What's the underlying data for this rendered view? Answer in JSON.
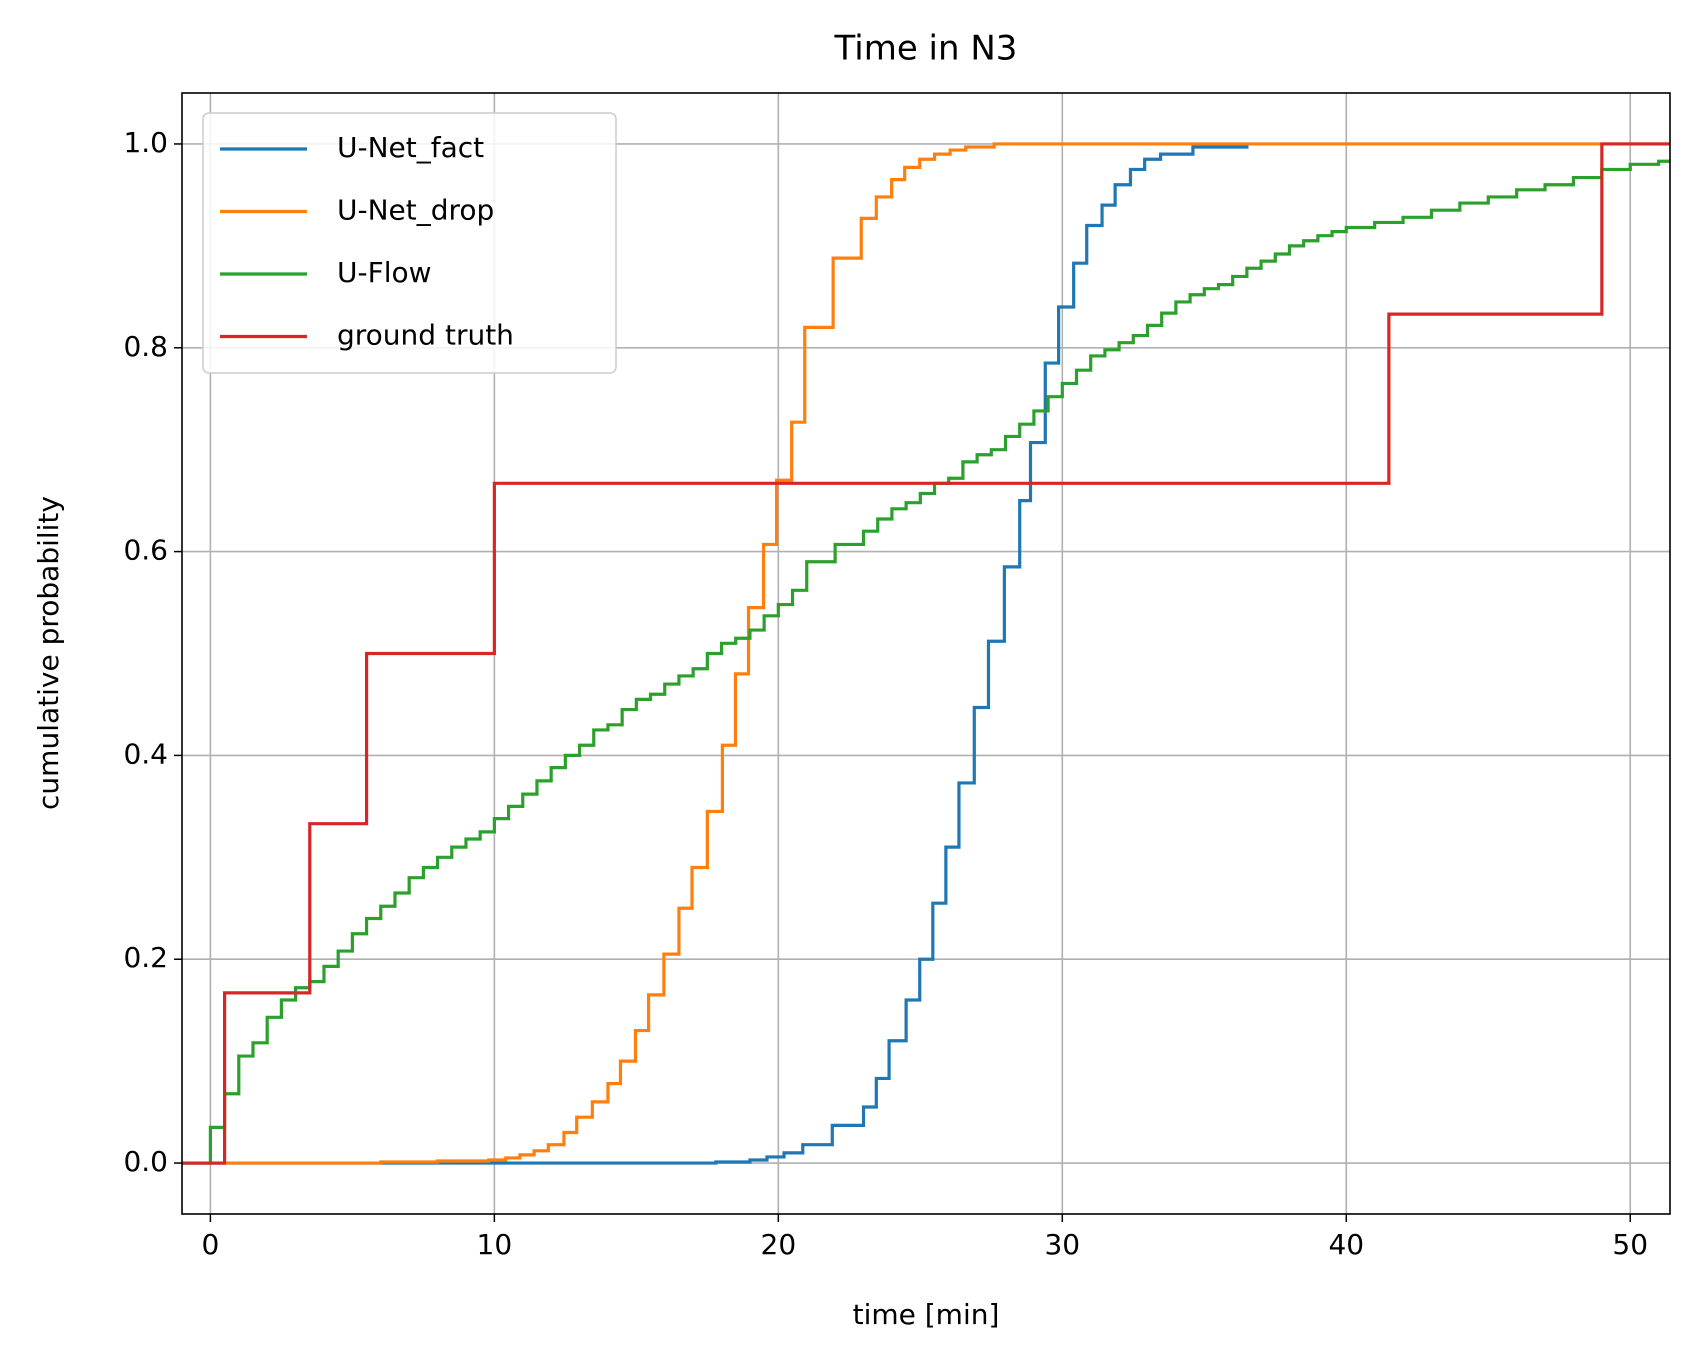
{
  "chart_data": {
    "type": "step",
    "title": "Time in N3",
    "x_label": "time [min]",
    "y_label": "cumulative probability",
    "xlim": [
      -1,
      51.4
    ],
    "ylim": [
      -0.05,
      1.05
    ],
    "xticks": [
      0,
      10,
      20,
      30,
      40,
      50
    ],
    "yticks": [
      {
        "value": 0,
        "label": "0.0"
      },
      0.2,
      0.4,
      0.6,
      0.8,
      {
        "value": 1,
        "label": "1.0"
      }
    ],
    "grid": true,
    "legend": "upper left",
    "series": [
      {
        "name": "U-Net_fact",
        "color": "#1f77b4",
        "x": [
          -1,
          17.8,
          19,
          19.6,
          20.2,
          20.86,
          21.9,
          23.0,
          23.45,
          23.9,
          24.5,
          24.98,
          25.44,
          25.9,
          26.36,
          26.9,
          27.4,
          27.96,
          28.5,
          28.88,
          29.4,
          29.87,
          30.4,
          30.86,
          31.4,
          31.86,
          32.4,
          32.9,
          33.46,
          34.6,
          36.5
        ],
        "values": [
          0,
          0.001,
          0.003,
          0.006,
          0.01,
          0.018,
          0.037,
          0.055,
          0.083,
          0.12,
          0.16,
          0.2,
          0.255,
          0.31,
          0.373,
          0.447,
          0.512,
          0.585,
          0.65,
          0.707,
          0.785,
          0.84,
          0.883,
          0.92,
          0.94,
          0.96,
          0.975,
          0.985,
          0.99,
          0.997,
          1.0
        ]
      },
      {
        "name": "U-Net_drop",
        "color": "#ff7f0e",
        "x": [
          -1,
          6,
          8,
          9.8,
          10.4,
          10.9,
          11.4,
          11.9,
          12.45,
          12.9,
          13.45,
          14,
          14.44,
          14.97,
          15.43,
          15.97,
          16.5,
          16.96,
          17.5,
          18.03,
          18.49,
          18.95,
          19.48,
          19.94,
          20.47,
          20.93,
          21.93,
          22.92,
          23.45,
          23.99,
          24.45,
          24.98,
          25.5,
          26.05,
          26.6,
          27.6,
          51.4
        ],
        "values": [
          0,
          0.001,
          0.002,
          0.003,
          0.005,
          0.008,
          0.012,
          0.018,
          0.03,
          0.045,
          0.06,
          0.078,
          0.1,
          0.13,
          0.165,
          0.205,
          0.25,
          0.29,
          0.345,
          0.41,
          0.48,
          0.545,
          0.607,
          0.67,
          0.727,
          0.82,
          0.888,
          0.927,
          0.948,
          0.965,
          0.977,
          0.985,
          0.99,
          0.994,
          0.997,
          1.0,
          1.0
        ]
      },
      {
        "name": "U-Flow",
        "color": "#2ca02c",
        "x": [
          -1,
          0,
          0.5,
          1,
          1.5,
          2,
          2.5,
          3,
          3.5,
          4,
          4.5,
          5,
          5.5,
          6,
          6.5,
          7,
          7.5,
          8,
          8.5,
          9,
          9.5,
          10,
          10.5,
          11,
          11.5,
          12,
          12.5,
          13,
          13.5,
          14,
          14.5,
          15,
          15.5,
          16,
          16.5,
          17,
          17.5,
          18,
          18.5,
          19,
          19.5,
          20,
          20.5,
          21,
          22,
          23,
          23.5,
          24,
          24.5,
          25,
          25.5,
          26,
          26.5,
          27,
          27.5,
          28,
          28.5,
          29,
          29.5,
          30,
          30.5,
          31,
          31.5,
          32,
          32.5,
          33,
          33.5,
          34,
          34.5,
          35,
          35.5,
          36,
          36.5,
          37,
          37.5,
          38,
          38.5,
          39,
          39.5,
          40,
          41,
          42,
          43,
          44,
          45,
          46,
          47,
          48,
          49,
          50,
          51,
          51.4
        ],
        "values": [
          0,
          0.035,
          0.068,
          0.105,
          0.118,
          0.143,
          0.16,
          0.172,
          0.178,
          0.193,
          0.208,
          0.225,
          0.24,
          0.252,
          0.265,
          0.28,
          0.29,
          0.3,
          0.31,
          0.318,
          0.325,
          0.338,
          0.35,
          0.362,
          0.375,
          0.388,
          0.4,
          0.41,
          0.425,
          0.43,
          0.445,
          0.455,
          0.46,
          0.47,
          0.478,
          0.485,
          0.5,
          0.51,
          0.515,
          0.523,
          0.537,
          0.548,
          0.562,
          0.59,
          0.607,
          0.62,
          0.632,
          0.642,
          0.648,
          0.657,
          0.667,
          0.672,
          0.688,
          0.695,
          0.7,
          0.713,
          0.725,
          0.738,
          0.752,
          0.765,
          0.778,
          0.792,
          0.798,
          0.805,
          0.812,
          0.822,
          0.834,
          0.845,
          0.852,
          0.858,
          0.862,
          0.87,
          0.878,
          0.885,
          0.892,
          0.9,
          0.905,
          0.91,
          0.914,
          0.918,
          0.923,
          0.928,
          0.935,
          0.942,
          0.948,
          0.955,
          0.96,
          0.967,
          0.975,
          0.98,
          0.983,
          0.983
        ]
      },
      {
        "name": "ground truth",
        "color": "#d62728",
        "x": [
          -1,
          0.5,
          3.5,
          5.5,
          10,
          41.5,
          49,
          51.4
        ],
        "values": [
          0,
          0.167,
          0.333,
          0.5,
          0.667,
          0.833,
          1.0,
          1.0
        ]
      }
    ]
  }
}
